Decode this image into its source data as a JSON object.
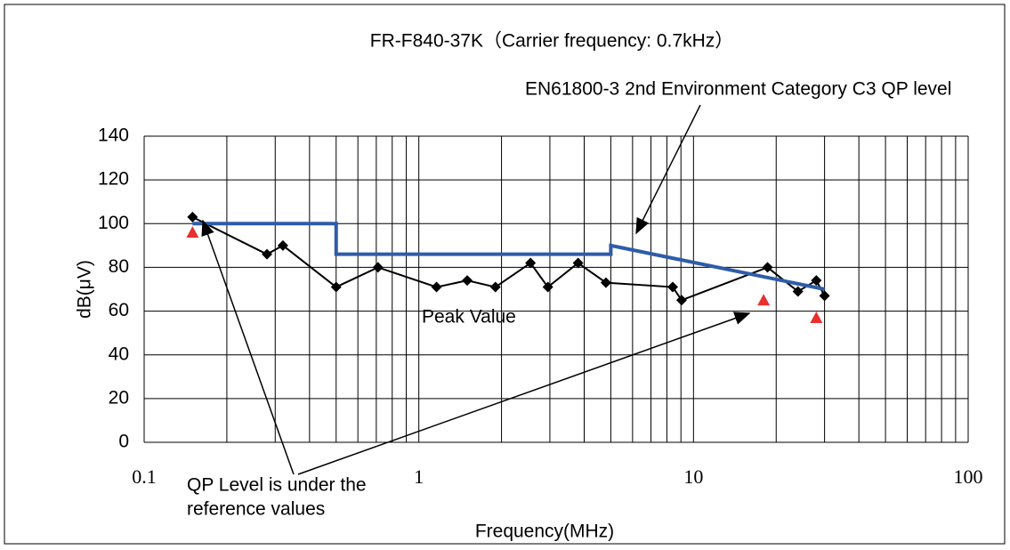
{
  "chart_data": {
    "type": "line",
    "title": "FR-F840-37K（Carrier frequency: 0.7kHz）",
    "xlabel": "Frequency(MHz)",
    "ylabel": "dB(μV)",
    "xscale": "log",
    "xlim": [
      0.1,
      100
    ],
    "xticks": [
      0.1,
      1,
      10,
      100
    ],
    "xminorticks": [
      0.2,
      0.3,
      0.4,
      0.5,
      0.6,
      0.7,
      0.8,
      0.9,
      2,
      3,
      4,
      5,
      6,
      7,
      8,
      9,
      20,
      30,
      40,
      50,
      60,
      70,
      80,
      90
    ],
    "ylim": [
      0,
      140
    ],
    "yticks": [
      0,
      20,
      40,
      60,
      80,
      100,
      120,
      140
    ],
    "grid": true,
    "series": [
      {
        "name": "Peak Value",
        "color": "#000000",
        "marker": "diamond",
        "x": [
          0.15,
          0.28,
          0.32,
          0.5,
          0.71,
          1.16,
          1.5,
          1.9,
          2.55,
          2.95,
          3.8,
          4.8,
          8.4,
          9.05,
          18.6,
          24,
          28,
          30
        ],
        "values": [
          103,
          86,
          90,
          71,
          80,
          71,
          74,
          71,
          82,
          71,
          82,
          73,
          71,
          65,
          80,
          69,
          74,
          67
        ]
      },
      {
        "name": "EN61800-3 2nd Environment Category C3 QP level",
        "color": "#2e5ca8",
        "marker": "none",
        "x": [
          0.15,
          0.5,
          0.5,
          5,
          5,
          30
        ],
        "values": [
          100,
          100,
          86,
          86,
          90,
          70
        ]
      },
      {
        "name": "QP Level is under the reference values",
        "color": "#e8302e",
        "marker": "triangle",
        "line": false,
        "x": [
          0.15,
          18,
          28
        ],
        "values": [
          96,
          65,
          57
        ]
      }
    ],
    "annotations": {
      "limit": "EN61800-3 2nd Environment Category C3 QP level",
      "peak": "Peak Value",
      "qp": [
        "QP Level is under the",
        "reference values"
      ]
    }
  }
}
